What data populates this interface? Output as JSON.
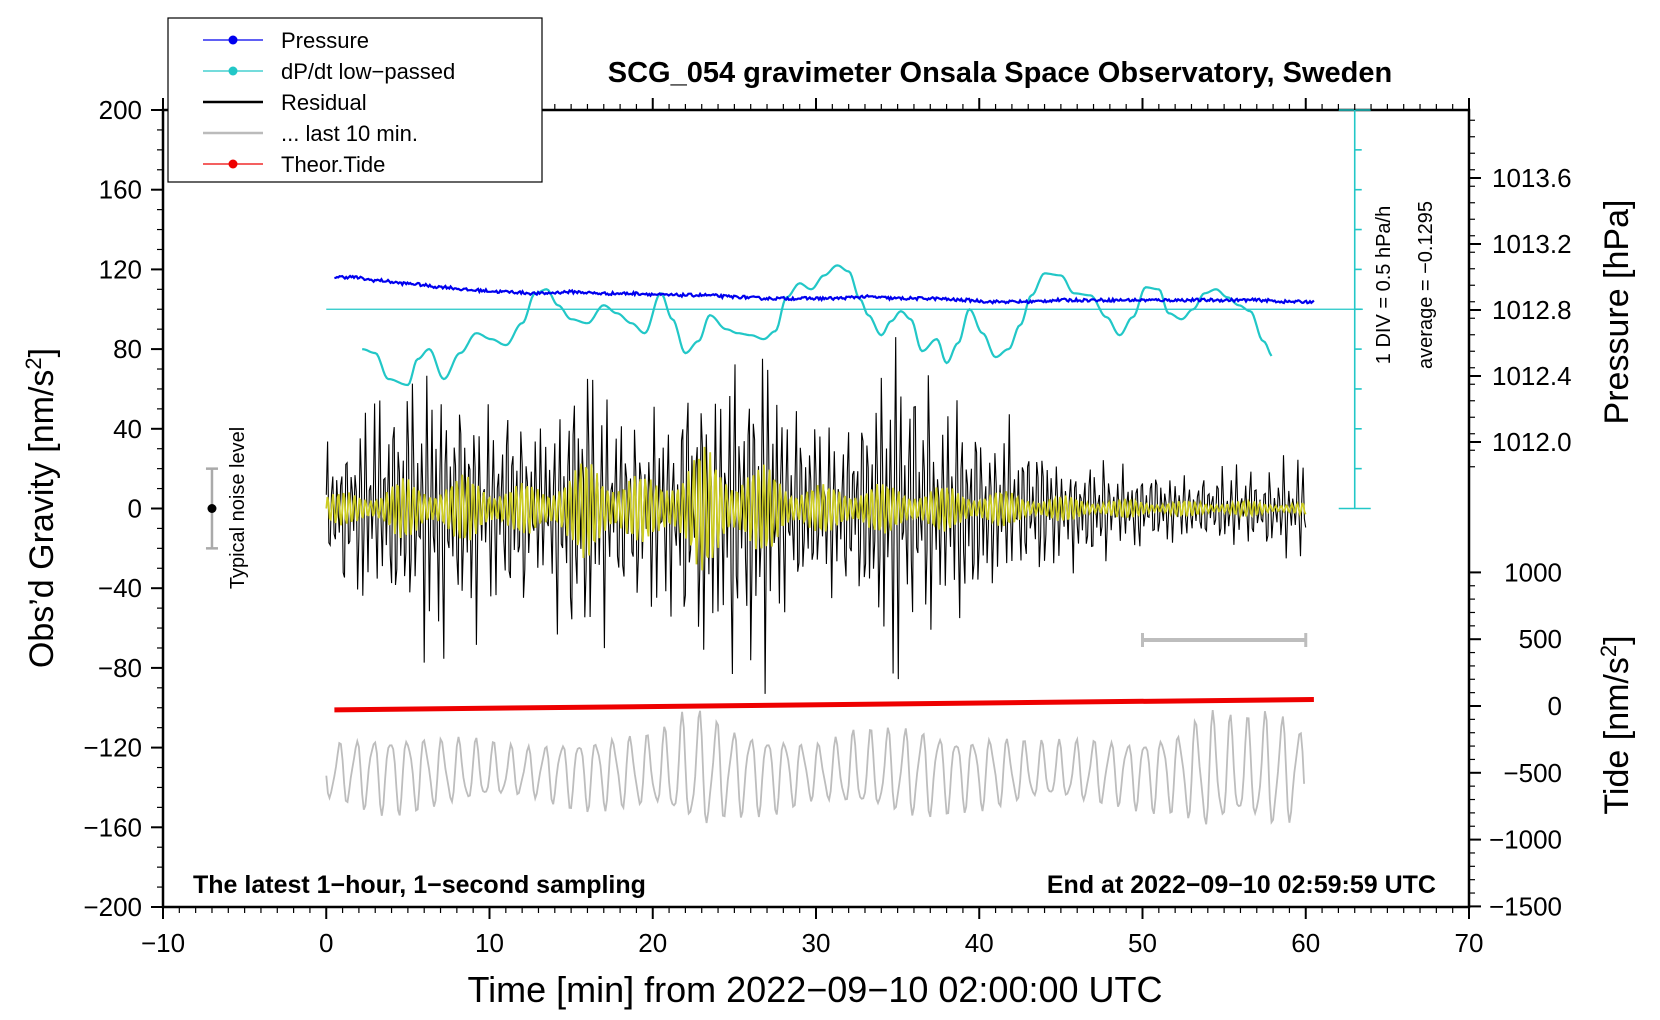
{
  "chart_data": {
    "type": "line",
    "title": "SCG_054 gravimeter Onsala Space Observatory, Sweden",
    "xlabel": "Time [min] from 2022−09−10 02:00:00 UTC",
    "ylabel": "Obs’d Gravity [nm/s2]",
    "ylabel_main": "Obs’d Gravity [nm/s",
    "ylabel_sup": "2",
    "ylabel_end": "]",
    "xlim": [
      -10,
      70
    ],
    "ylim": [
      -200,
      200
    ],
    "x_ticks": [
      -10,
      0,
      10,
      20,
      30,
      40,
      50,
      60,
      70
    ],
    "x_tick_labels": [
      "−10",
      "0",
      "10",
      "20",
      "30",
      "40",
      "50",
      "60",
      "70"
    ],
    "y_ticks": [
      -200,
      -160,
      -120,
      -80,
      -40,
      0,
      40,
      80,
      120,
      160,
      200
    ],
    "y_tick_labels": [
      "−200",
      "−160",
      "−120",
      "−80",
      "−40",
      "0",
      "40",
      "80",
      "120",
      "160",
      "200"
    ],
    "pressure_axis": {
      "label": "Pressure [hPa]",
      "ticks": [
        1012.0,
        1012.4,
        1012.8,
        1013.2,
        1013.6
      ],
      "tick_labels": [
        "1012.0",
        "1012.4",
        "1012.8",
        "1013.2",
        "1013.6"
      ]
    },
    "tide_axis": {
      "label": "Tide [nm/s2]",
      "label_main": "Tide [nm/s",
      "label_sup": "2",
      "label_end": "]",
      "ticks": [
        -1500,
        -1000,
        -500,
        0,
        500,
        1000
      ],
      "tick_labels": [
        "−1500",
        "−1000",
        "−500",
        "0",
        "500",
        "1000"
      ]
    },
    "dpdt_scale": {
      "label": "1 DIV = 0.5 hPa/h",
      "average": "average = −0.1295"
    },
    "annotations": {
      "bottom_left": "The latest 1−hour, 1−second sampling",
      "bottom_right": "End at 2022−09−10 02:59:59 UTC",
      "noise": "Typical noise level"
    },
    "noise_bar": {
      "x": -7,
      "center": 0,
      "low": -20,
      "high": 20
    },
    "last10_bar": {
      "x_start": 50,
      "x_end": 60
    },
    "legend": [
      {
        "label": "Pressure",
        "color": "#0000ee",
        "marker": true
      },
      {
        "label": "dP/dt low−passed",
        "color": "#22c7c7",
        "marker": true
      },
      {
        "label": "Residual",
        "color": "#000000",
        "marker": false
      },
      {
        "label": "... last 10 min.",
        "color": "#bbbbbb",
        "marker": false
      },
      {
        "label": "Theor.Tide",
        "color": "#ee0000",
        "marker": true
      }
    ],
    "series": [
      {
        "name": "Pressure",
        "units": "hPa",
        "x": [
          0.5,
          1.5,
          3,
          5,
          7,
          9,
          11,
          13,
          15,
          17,
          19,
          21,
          23,
          25,
          27,
          29,
          31,
          33,
          35,
          37,
          39,
          41,
          43,
          45,
          47,
          49,
          51,
          53,
          55,
          57,
          59,
          60.5
        ],
        "values": [
          1013.0,
          1013.0,
          1012.98,
          1012.96,
          1012.94,
          1012.92,
          1012.91,
          1012.9,
          1012.91,
          1012.9,
          1012.9,
          1012.89,
          1012.89,
          1012.88,
          1012.87,
          1012.87,
          1012.87,
          1012.88,
          1012.87,
          1012.87,
          1012.86,
          1012.85,
          1012.85,
          1012.86,
          1012.86,
          1012.86,
          1012.86,
          1012.86,
          1012.86,
          1012.86,
          1012.85,
          1012.85
        ]
      },
      {
        "name": "dP/dt low−passed",
        "units": "gravity axis (nm/s2)",
        "x": [
          2.2,
          3,
          3.8,
          5,
          5.6,
          6.3,
          7.2,
          8.2,
          9.2,
          10.1,
          11,
          12,
          12.8,
          13.5,
          14.2,
          15,
          16,
          17,
          17.8,
          18.7,
          19.5,
          20.5,
          21.2,
          22,
          22.8,
          23.5,
          24.5,
          25.2,
          26,
          26.8,
          27.5,
          28.2,
          29,
          29.7,
          30.5,
          31.3,
          32,
          32.7,
          33.2,
          34,
          34.6,
          35.2,
          35.8,
          36.5,
          37.4,
          38,
          38.7,
          39.4,
          40.2,
          41,
          41.8,
          42.5,
          43.2,
          44,
          45,
          45.8,
          46.8,
          47.8,
          48.6,
          49.4,
          50.2,
          51,
          51.6,
          52.4,
          53.1,
          53.8,
          54.5,
          55.2,
          55.9,
          56.6,
          57.4,
          58
        ],
        "values": [
          80,
          78,
          65,
          62,
          75,
          80,
          65,
          78,
          88,
          85,
          82,
          93,
          108,
          110,
          102,
          95,
          93,
          102,
          98,
          93,
          88,
          108,
          95,
          78,
          84,
          97,
          90,
          88,
          87,
          85,
          89,
          106,
          113,
          110,
          117,
          122,
          119,
          105,
          97,
          87,
          94,
          99,
          95,
          79,
          85,
          73,
          83,
          100,
          88,
          76,
          80,
          92,
          107,
          118,
          117,
          108,
          107,
          96,
          87,
          96,
          111,
          110,
          98,
          95,
          100,
          108,
          110,
          106,
          102,
          99,
          84,
          76
        ]
      },
      {
        "name": "Residual",
        "units": "nm/s2",
        "peak_amplitude": 95
      },
      {
        "name": "... last 10 min.",
        "units": "nm/s2",
        "peak_amplitude": 20
      },
      {
        "name": "Theor.Tide",
        "units": "nm/s2",
        "x": [
          0.5,
          60.5
        ],
        "values": [
          -29,
          49
        ]
      }
    ],
    "reference_line": {
      "name": "dP/dt zero",
      "value": 100
    }
  }
}
